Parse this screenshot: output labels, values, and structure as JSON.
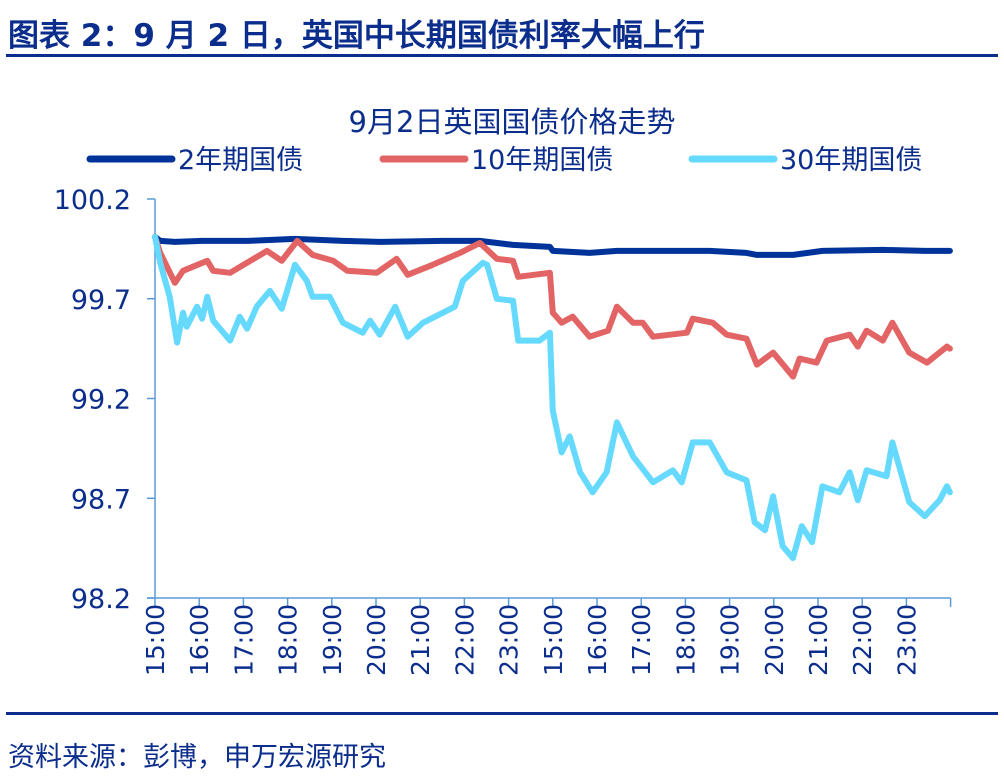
{
  "figure_title": "图表 2：9 月 2 日，英国中长期国债利率大幅上行",
  "source": "资料来源：彭博，申万宏源研究",
  "chart_data": {
    "type": "line",
    "title": "9月2日英国国债价格走势",
    "xlabel": "",
    "ylabel": "",
    "ylim": [
      98.2,
      100.2
    ],
    "yticks": [
      "100.2",
      "99.7",
      "99.2",
      "98.7",
      "98.2"
    ],
    "xticks": [
      "15:00",
      "16:00",
      "17:00",
      "18:00",
      "19:00",
      "20:00",
      "21:00",
      "22:00",
      "23:00",
      "15:00",
      "16:00",
      "17:00",
      "18:00",
      "19:00",
      "20:00",
      "21:00",
      "22:00",
      "23:00"
    ],
    "grid": false,
    "legend_position": "top",
    "series": [
      {
        "name": "2年期国债",
        "color": "#003399",
        "points": [
          [
            "15:00",
            100.01
          ],
          [
            "15:07",
            99.99
          ],
          [
            "15:27",
            99.985
          ],
          [
            "16:04",
            99.99
          ],
          [
            "17:05",
            99.99
          ],
          [
            "18:10",
            100.0
          ],
          [
            "19:15",
            99.99
          ],
          [
            "20:05",
            99.985
          ],
          [
            "21:31",
            99.99
          ],
          [
            "22:21",
            99.99
          ],
          [
            "23:06",
            99.97
          ],
          [
            "23:56",
            99.96
          ],
          [
            "15:00",
            99.94
          ],
          [
            "15:50",
            99.93
          ],
          [
            "16:27",
            99.94
          ],
          [
            "18:33",
            99.94
          ],
          [
            "19:23",
            99.93
          ],
          [
            "19:37",
            99.92
          ],
          [
            "20:26",
            99.92
          ],
          [
            "21:06",
            99.94
          ],
          [
            "22:28",
            99.945
          ],
          [
            "23:25",
            99.94
          ],
          [
            "23:59",
            99.94
          ]
        ]
      },
      {
        "name": "10年期国债",
        "color": "#E36464",
        "points": [
          [
            "15:00",
            100.01
          ],
          [
            "15:07",
            99.93
          ],
          [
            "15:27",
            99.78
          ],
          [
            "15:38",
            99.84
          ],
          [
            "16:11",
            99.89
          ],
          [
            "16:19",
            99.84
          ],
          [
            "16:42",
            99.83
          ],
          [
            "17:32",
            99.94
          ],
          [
            "17:52",
            99.89
          ],
          [
            "18:13",
            99.99
          ],
          [
            "18:34",
            99.92
          ],
          [
            "19:02",
            99.89
          ],
          [
            "19:21",
            99.84
          ],
          [
            "20:01",
            99.83
          ],
          [
            "20:28",
            99.9
          ],
          [
            "20:43",
            99.82
          ],
          [
            "21:17",
            99.87
          ],
          [
            "21:54",
            99.93
          ],
          [
            "22:21",
            99.98
          ],
          [
            "22:44",
            99.9
          ],
          [
            "23:06",
            99.89
          ],
          [
            "23:13",
            99.81
          ],
          [
            "23:56",
            99.83
          ],
          [
            "15:00",
            99.63
          ],
          [
            "15:12",
            99.58
          ],
          [
            "15:27",
            99.61
          ],
          [
            "15:50",
            99.51
          ],
          [
            "16:15",
            99.54
          ],
          [
            "16:27",
            99.66
          ],
          [
            "16:49",
            99.58
          ],
          [
            "17:02",
            99.58
          ],
          [
            "17:16",
            99.51
          ],
          [
            "18:02",
            99.53
          ],
          [
            "18:10",
            99.6
          ],
          [
            "18:37",
            99.58
          ],
          [
            "18:56",
            99.52
          ],
          [
            "19:23",
            99.5
          ],
          [
            "19:37",
            99.37
          ],
          [
            "19:59",
            99.43
          ],
          [
            "20:26",
            99.31
          ],
          [
            "20:35",
            99.4
          ],
          [
            "20:58",
            99.38
          ],
          [
            "21:12",
            99.49
          ],
          [
            "21:43",
            99.52
          ],
          [
            "21:54",
            99.46
          ],
          [
            "22:06",
            99.54
          ],
          [
            "22:28",
            99.49
          ],
          [
            "22:41",
            99.58
          ],
          [
            "23:04",
            99.43
          ],
          [
            "23:28",
            99.38
          ],
          [
            "23:55",
            99.46
          ],
          [
            "23:59",
            99.45
          ]
        ]
      },
      {
        "name": "30年期国债",
        "color": "#66D9FF",
        "points": [
          [
            "15:00",
            100.01
          ],
          [
            "15:07",
            99.88
          ],
          [
            "15:20",
            99.71
          ],
          [
            "15:30",
            99.48
          ],
          [
            "15:38",
            99.63
          ],
          [
            "15:43",
            99.56
          ],
          [
            "15:57",
            99.66
          ],
          [
            "16:04",
            99.6
          ],
          [
            "16:11",
            99.71
          ],
          [
            "16:19",
            99.59
          ],
          [
            "16:42",
            99.49
          ],
          [
            "16:55",
            99.61
          ],
          [
            "17:05",
            99.55
          ],
          [
            "17:18",
            99.66
          ],
          [
            "17:36",
            99.74
          ],
          [
            "17:52",
            99.65
          ],
          [
            "18:10",
            99.87
          ],
          [
            "18:26",
            99.79
          ],
          [
            "18:34",
            99.71
          ],
          [
            "18:57",
            99.71
          ],
          [
            "19:15",
            99.58
          ],
          [
            "19:42",
            99.53
          ],
          [
            "19:52",
            99.59
          ],
          [
            "20:05",
            99.52
          ],
          [
            "20:26",
            99.66
          ],
          [
            "20:43",
            99.51
          ],
          [
            "21:04",
            99.58
          ],
          [
            "21:31",
            99.63
          ],
          [
            "21:47",
            99.66
          ],
          [
            "21:58",
            99.79
          ],
          [
            "22:25",
            99.88
          ],
          [
            "22:31",
            99.87
          ],
          [
            "22:44",
            99.7
          ],
          [
            "23:06",
            99.69
          ],
          [
            "23:13",
            99.49
          ],
          [
            "23:42",
            99.49
          ],
          [
            "23:56",
            99.53
          ],
          [
            "15:00",
            99.14
          ],
          [
            "15:12",
            98.93
          ],
          [
            "15:23",
            99.01
          ],
          [
            "15:37",
            98.83
          ],
          [
            "15:54",
            98.73
          ],
          [
            "16:13",
            98.83
          ],
          [
            "16:27",
            99.08
          ],
          [
            "16:49",
            98.91
          ],
          [
            "17:16",
            98.78
          ],
          [
            "17:43",
            98.84
          ],
          [
            "17:55",
            98.78
          ],
          [
            "18:10",
            98.98
          ],
          [
            "18:33",
            98.98
          ],
          [
            "18:56",
            98.83
          ],
          [
            "19:23",
            98.79
          ],
          [
            "19:34",
            98.58
          ],
          [
            "19:48",
            98.54
          ],
          [
            "19:59",
            98.71
          ],
          [
            "20:12",
            98.46
          ],
          [
            "20:26",
            98.4
          ],
          [
            "20:38",
            98.56
          ],
          [
            "20:52",
            98.48
          ],
          [
            "21:06",
            98.76
          ],
          [
            "21:29",
            98.73
          ],
          [
            "21:43",
            98.83
          ],
          [
            "21:54",
            98.69
          ],
          [
            "22:06",
            98.84
          ],
          [
            "22:33",
            98.81
          ],
          [
            "22:41",
            98.98
          ],
          [
            "23:04",
            98.68
          ],
          [
            "23:25",
            98.61
          ],
          [
            "23:45",
            98.69
          ],
          [
            "23:55",
            98.76
          ],
          [
            "23:59",
            98.73
          ]
        ]
      }
    ]
  }
}
